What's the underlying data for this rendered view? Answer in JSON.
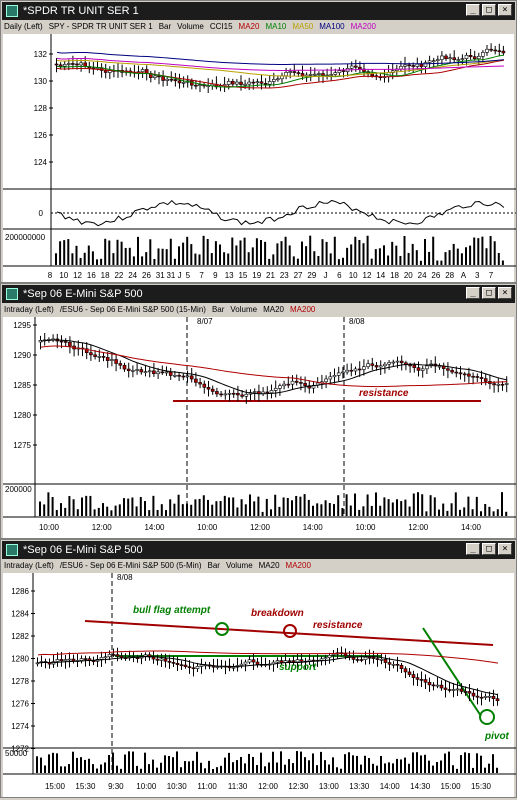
{
  "windows": [
    {
      "title": "*SPDR TR UNIT SER 1",
      "legend": [
        {
          "text": "Daily  (Left)",
          "color": "#000000"
        },
        {
          "text": "SPY - SPDR TR UNIT SER 1",
          "color": "#000000"
        },
        {
          "text": "Bar",
          "color": "#000000"
        },
        {
          "text": "Volume",
          "color": "#000000"
        },
        {
          "text": "CCI15",
          "color": "#000000"
        },
        {
          "text": "MA20",
          "color": "#b00000"
        },
        {
          "text": "MA10",
          "color": "#008000"
        },
        {
          "text": "MA50",
          "color": "#b8a000"
        },
        {
          "text": "MA100",
          "color": "#000080"
        },
        {
          "text": "MA200",
          "color": "#c000c0"
        }
      ],
      "y_ticks": [
        "132",
        "130",
        "128",
        "126",
        "124"
      ],
      "cci_tick": "0",
      "volume_tick": "200000000",
      "x_ticks": [
        "8",
        "10",
        "12",
        "16",
        "18",
        "22",
        "24",
        "26",
        "31",
        "31 J",
        "5",
        "7",
        "9",
        "13",
        "15",
        "19",
        "21",
        "23",
        "27",
        "29",
        "J",
        "6",
        "10",
        "12",
        "14",
        "18",
        "20",
        "24",
        "26",
        "28",
        "A",
        "3",
        "7"
      ]
    },
    {
      "title": "*Sep 06  E-Mini S&P 500",
      "legend": [
        {
          "text": "Intraday  (Left)",
          "color": "#000000"
        },
        {
          "text": "/ESU6 - Sep 06  E-Mini S&P 500  (15-Min)",
          "color": "#000000"
        },
        {
          "text": "Bar",
          "color": "#000000"
        },
        {
          "text": "Volume",
          "color": "#000000"
        },
        {
          "text": "MA20",
          "color": "#000000"
        },
        {
          "text": "MA200",
          "color": "#b00000"
        }
      ],
      "y_ticks": [
        "1295",
        "1290",
        "1285",
        "1280",
        "1275"
      ],
      "volume_tick": "200000",
      "date_markers": [
        "8/07",
        "8/08"
      ],
      "x_ticks": [
        "10:00",
        "12:00",
        "14:00",
        "10:00",
        "12:00",
        "14:00",
        "10:00",
        "12:00",
        "14:00"
      ],
      "annotations": [
        {
          "text": "resistance",
          "color": "#a00000"
        }
      ]
    },
    {
      "title": "*Sep 06  E-Mini S&P 500",
      "legend": [
        {
          "text": "Intraday  (Left)",
          "color": "#000000"
        },
        {
          "text": "/ESU6 - Sep 06  E-Mini S&P 500  (5-Min)",
          "color": "#000000"
        },
        {
          "text": "Bar",
          "color": "#000000"
        },
        {
          "text": "Volume",
          "color": "#000000"
        },
        {
          "text": "MA20",
          "color": "#000000"
        },
        {
          "text": "MA200",
          "color": "#b00000"
        }
      ],
      "y_ticks": [
        "1286",
        "1284",
        "1282",
        "1280",
        "1278",
        "1276",
        "1274",
        "1272"
      ],
      "volume_tick": "50000",
      "date_markers": [
        "8/08"
      ],
      "x_ticks": [
        "15:00",
        "15:30",
        "9:30",
        "10:00",
        "10:30",
        "11:00",
        "11:30",
        "12:00",
        "12:30",
        "13:00",
        "13:30",
        "14:00",
        "14:30",
        "15:00",
        "15:30"
      ],
      "annotations": [
        {
          "text": "bull flag attempt",
          "color": "#008000"
        },
        {
          "text": "breakdown",
          "color": "#a00000"
        },
        {
          "text": "resistance",
          "color": "#a00000"
        },
        {
          "text": "support",
          "color": "#008000"
        },
        {
          "text": "pivot",
          "color": "#008000"
        }
      ]
    }
  ],
  "colors": {
    "up": "#ffffff",
    "down": "#b00000",
    "ma20": "#000000",
    "ma200": "#b00000",
    "green": "#008000"
  }
}
